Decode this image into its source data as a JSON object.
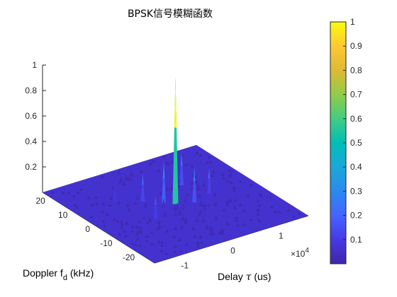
{
  "chart_data": {
    "type": "surface3d",
    "title": "BPSK信号模糊函数",
    "xlabel_main": "Delay ",
    "xlabel_symbol": "τ",
    "xlabel_unit": " (us)",
    "x_exponent_base": "×10",
    "x_exponent_power": "4",
    "x_ticks": [
      "-1",
      "0",
      "1"
    ],
    "x_range": [
      -1.6,
      1.6
    ],
    "ylabel_main": "Doppler f",
    "ylabel_sub": "d",
    "ylabel_unit": " (kHz)",
    "y_ticks": [
      "20",
      "10",
      "0",
      "-10",
      "-20"
    ],
    "y_range": [
      -25,
      25
    ],
    "z_ticks": [
      "0.2",
      "0.4",
      "0.6",
      "0.8",
      "1"
    ],
    "z_range": [
      0,
      1
    ],
    "colormap": "parula",
    "colorbar_ticks": [
      "0.1",
      "0.2",
      "0.3",
      "0.4",
      "0.5",
      "0.6",
      "0.7",
      "0.8",
      "0.9",
      "1"
    ],
    "colorbar_range": [
      0.0,
      1.0
    ],
    "peak": {
      "delay": 0,
      "doppler": 0,
      "value": 1.0
    },
    "sidelobe_peaks": [
      {
        "delay": -0.15,
        "doppler": 2,
        "value": 0.33
      },
      {
        "delay": 0.12,
        "doppler": 3,
        "value": 0.3
      },
      {
        "delay": 0.3,
        "doppler": -2,
        "value": 0.28
      },
      {
        "delay": -0.4,
        "doppler": 6,
        "value": 0.22
      },
      {
        "delay": 0.5,
        "doppler": 8,
        "value": 0.26
      },
      {
        "delay": -0.6,
        "doppler": -4,
        "value": 0.18
      },
      {
        "delay": 0.7,
        "doppler": 0,
        "value": 0.2
      },
      {
        "delay": -0.8,
        "doppler": 10,
        "value": 0.15
      },
      {
        "delay": 0.9,
        "doppler": 4,
        "value": 0.14
      },
      {
        "delay": -1.0,
        "doppler": -8,
        "value": 0.12
      },
      {
        "delay": 0.2,
        "doppler": -10,
        "value": 0.12
      }
    ]
  }
}
